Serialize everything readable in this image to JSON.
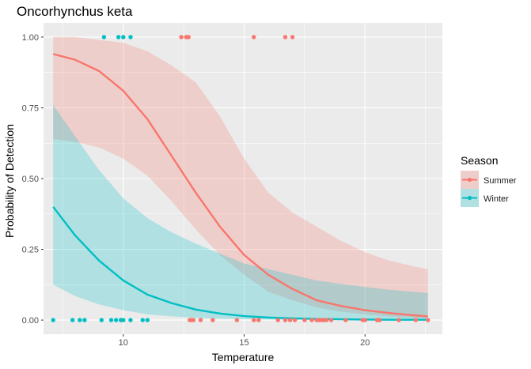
{
  "chart_data": {
    "type": "line",
    "title": "Oncorhynchus keta",
    "xlabel": "Temperature",
    "ylabel": "Probability of Detection",
    "xlim": [
      6.7,
      23.2
    ],
    "ylim": [
      -0.05,
      1.05
    ],
    "x_ticks": [
      {
        "value": 10,
        "label": "10"
      },
      {
        "value": 15,
        "label": "15"
      },
      {
        "value": 20,
        "label": "20"
      }
    ],
    "y_ticks": [
      {
        "value": 0,
        "label": "0.00"
      },
      {
        "value": 0.25,
        "label": "0.25"
      },
      {
        "value": 0.5,
        "label": "0.50"
      },
      {
        "value": 0.75,
        "label": "0.75"
      },
      {
        "value": 1,
        "label": "1.00"
      }
    ],
    "grid": true,
    "legend": {
      "title": "Season",
      "position": "right"
    },
    "series": [
      {
        "name": "Summer",
        "color": "#F8766D",
        "fill": "#F8766D",
        "curve": {
          "x": [
            7.1,
            8,
            9,
            10,
            11,
            12,
            13,
            14,
            15,
            16,
            17,
            18,
            19,
            20,
            21,
            22,
            22.6
          ],
          "y": [
            0.94,
            0.92,
            0.88,
            0.81,
            0.71,
            0.58,
            0.45,
            0.33,
            0.23,
            0.16,
            0.11,
            0.07,
            0.05,
            0.035,
            0.025,
            0.017,
            0.013
          ],
          "lower": [
            0.64,
            0.63,
            0.61,
            0.57,
            0.51,
            0.42,
            0.32,
            0.23,
            0.16,
            0.1,
            0.07,
            0.045,
            0.03,
            0.02,
            0.013,
            0.008,
            0.006
          ],
          "upper": [
            1.0,
            1.0,
            0.99,
            0.98,
            0.95,
            0.9,
            0.84,
            0.72,
            0.57,
            0.45,
            0.38,
            0.33,
            0.28,
            0.24,
            0.21,
            0.19,
            0.18
          ]
        },
        "points": {
          "x": [
            12.4,
            12.6,
            12.65,
            12.7,
            15.4,
            16.7,
            17.0,
            12.75,
            12.8,
            12.9,
            13.2,
            13.7,
            14.7,
            15.4,
            15.6,
            16.4,
            16.7,
            16.9,
            17.1,
            17.5,
            17.8,
            18.0,
            18.1,
            18.2,
            18.3,
            18.4,
            18.6,
            19.2,
            19.9,
            20.0,
            20.5,
            20.6,
            21.4,
            22.1,
            22.6
          ],
          "y": [
            1,
            1,
            1,
            1,
            1,
            1,
            1,
            0,
            0,
            0,
            0,
            0,
            0,
            0,
            0,
            0,
            0,
            0,
            0,
            0,
            0,
            0,
            0,
            0,
            0,
            0,
            0,
            0,
            0,
            0,
            0,
            0,
            0,
            0,
            0
          ]
        }
      },
      {
        "name": "Winter",
        "color": "#00BFC4",
        "fill": "#00BFC4",
        "curve": {
          "x": [
            7.1,
            8,
            9,
            10,
            11,
            12,
            13,
            14,
            15,
            16,
            17,
            18,
            19,
            20,
            21,
            22,
            22.6
          ],
          "y": [
            0.4,
            0.3,
            0.21,
            0.14,
            0.09,
            0.06,
            0.037,
            0.023,
            0.014,
            0.009,
            0.006,
            0.004,
            0.003,
            0.002,
            0.001,
            0.001,
            0.001
          ],
          "lower": [
            0.125,
            0.085,
            0.055,
            0.035,
            0.02,
            0.013,
            0.008,
            0.005,
            0.003,
            0.002,
            0.001,
            0.001,
            0.0,
            0.0,
            0.0,
            0.0,
            0.0
          ],
          "upper": [
            0.76,
            0.65,
            0.53,
            0.43,
            0.36,
            0.31,
            0.27,
            0.235,
            0.2,
            0.18,
            0.16,
            0.14,
            0.128,
            0.117,
            0.107,
            0.1,
            0.095
          ]
        },
        "points": {
          "x": [
            9.2,
            9.8,
            10.0,
            10.3,
            7.1,
            7.9,
            8.2,
            8.4,
            9.1,
            9.5,
            9.7,
            9.9,
            10.0,
            10.3,
            10.8,
            11.0
          ],
          "y": [
            1,
            1,
            1,
            1,
            0,
            0,
            0,
            0,
            0,
            0,
            0,
            0,
            0,
            0,
            0,
            0
          ]
        }
      }
    ]
  }
}
